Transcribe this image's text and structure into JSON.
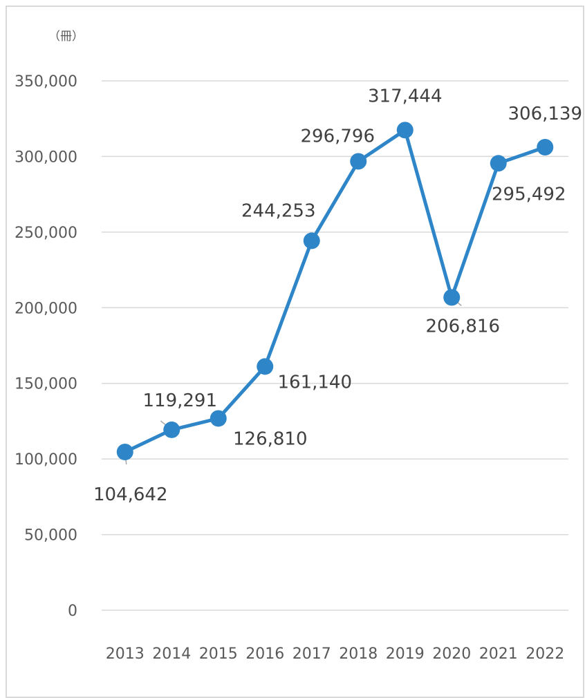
{
  "chart_data": {
    "type": "line",
    "title": "",
    "xlabel": "",
    "ylabel": "",
    "y_unit": "（冊）",
    "categories": [
      "2013",
      "2014",
      "2015",
      "2016",
      "2017",
      "2018",
      "2019",
      "2020",
      "2021",
      "2022"
    ],
    "series": [
      {
        "values": [
          104642,
          119291,
          126810,
          161140,
          244253,
          296796,
          317444,
          206816,
          295492,
          306139
        ],
        "color": "#2e86c8"
      }
    ],
    "data_labels": [
      "104,642",
      "119,291",
      "126,810",
      "161,140",
      "244,253",
      "296,796",
      "317,444",
      "206,816",
      "295,492",
      "306,139"
    ],
    "ylim": [
      0,
      350000
    ],
    "y_ticks": [
      0,
      50000,
      100000,
      150000,
      200000,
      250000,
      300000,
      350000
    ],
    "y_tick_labels": [
      "0",
      "50,000",
      "100,000",
      "150,000",
      "200,000",
      "250,000",
      "300,000",
      "350,000"
    ],
    "grid": true,
    "legend": "none",
    "colors": {
      "series": "#2e86c8",
      "grid": "#d9d9d9",
      "frame": "#d9d9d9",
      "tick_text": "#595959",
      "label_text": "#404040"
    }
  }
}
